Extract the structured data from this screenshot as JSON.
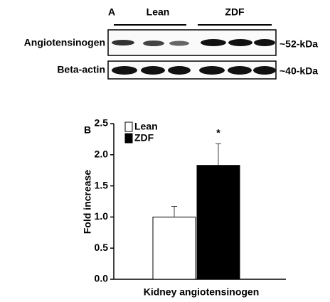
{
  "panel_a": {
    "label": "A",
    "groups": [
      "Lean",
      "ZDF"
    ],
    "rows": [
      {
        "name": "Angiotensinogen",
        "size": "~52-kDa"
      },
      {
        "name": "Beta-actin",
        "size": "~40-kDa"
      }
    ]
  },
  "chart_data": {
    "type": "bar",
    "panel_label": "B",
    "y_label": "Fold increase",
    "x_label": "Kidney angiotensinogen",
    "annotation": "*",
    "series": [
      {
        "name": "Lean",
        "color": "#ffffff",
        "values": [
          1.0
        ],
        "errors": [
          0.17
        ]
      },
      {
        "name": "ZDF",
        "color": "#000000",
        "values": [
          1.83
        ],
        "errors": [
          0.35
        ]
      }
    ],
    "ylim": [
      0,
      2.5
    ],
    "yticks": [
      {
        "value": 0,
        "label": "0.0"
      },
      {
        "value": 0.5,
        "label": "0.5"
      },
      {
        "value": 1,
        "label": "1.0"
      },
      {
        "value": 1.5,
        "label": "1.5"
      },
      {
        "value": 2,
        "label": "2.0"
      },
      {
        "value": 2.5,
        "label": "2.5"
      }
    ]
  }
}
